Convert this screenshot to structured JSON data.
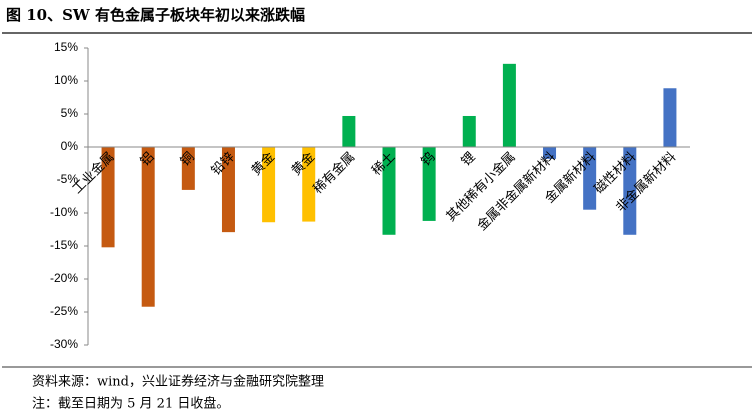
{
  "chart_data": {
    "type": "bar",
    "title": "图 10、SW 有色金属子板块年初以来涨跌幅",
    "categories": [
      "工业金属",
      "铝",
      "铜",
      "铅锌",
      "黄金",
      "黄金",
      "稀有金属",
      "稀土",
      "钨",
      "锂",
      "其他稀有小金属",
      "金属非金属新材料",
      "金属新材料",
      "磁性材料",
      "非金属新材料"
    ],
    "values": [
      -15.2,
      -24.2,
      -6.5,
      -12.9,
      -11.4,
      -11.3,
      4.7,
      -13.3,
      -11.2,
      4.7,
      12.6,
      -1.8,
      -9.5,
      -13.3,
      8.9
    ],
    "colors": [
      "#c55a11",
      "#c55a11",
      "#c55a11",
      "#c55a11",
      "#ffc000",
      "#ffc000",
      "#00b050",
      "#00b050",
      "#00b050",
      "#00b050",
      "#00b050",
      "#4472c4",
      "#4472c4",
      "#4472c4",
      "#4472c4"
    ],
    "ylim": [
      -30,
      15
    ],
    "yticks": [
      {
        "value": -30,
        "label": "-30%"
      },
      {
        "value": -25,
        "label": "-25%"
      },
      {
        "value": -20,
        "label": "-20%"
      },
      {
        "value": -15,
        "label": "-15%"
      },
      {
        "value": -10,
        "label": "-10%"
      },
      {
        "value": -5,
        "label": "-5%"
      },
      {
        "value": 0,
        "label": "0%"
      },
      {
        "value": 5,
        "label": "5%"
      },
      {
        "value": 10,
        "label": "10%"
      },
      {
        "value": 15,
        "label": "15%"
      }
    ],
    "source": "资料来源：wind，兴业证券经济与金融研究院整理",
    "note": "注：截至日期为 5 月 21 日收盘。"
  }
}
